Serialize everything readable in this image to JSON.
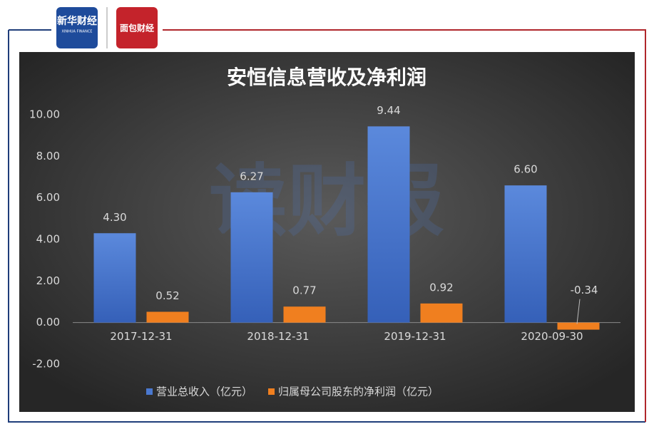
{
  "logos": {
    "xinhua": "新华财经",
    "xinhua_en": "XINHUA FINANCE",
    "mianbao": "面包财经"
  },
  "watermark": "读财报",
  "chart_data": {
    "type": "bar",
    "title": "安恒信息营收及净利润",
    "categories": [
      "2017-12-31",
      "2018-12-31",
      "2019-12-31",
      "2020-09-30"
    ],
    "series": [
      {
        "name": "营业总收入（亿元）",
        "color": "#4a78cf",
        "values": [
          4.3,
          6.27,
          9.44,
          6.6
        ],
        "value_labels": [
          "4.30",
          "6.27",
          "9.44",
          "6.60"
        ]
      },
      {
        "name": "归属母公司股东的净利润（亿元）",
        "color": "#f07f1f",
        "values": [
          0.52,
          0.77,
          0.92,
          -0.34
        ],
        "value_labels": [
          "0.52",
          "0.77",
          "0.92",
          "-0.34"
        ]
      }
    ],
    "ylim": [
      -2,
      10
    ],
    "yticks": [
      {
        "value": -2,
        "label": "-2.00"
      },
      {
        "value": 0,
        "label": "0.00"
      },
      {
        "value": 2,
        "label": "2.00"
      },
      {
        "value": 4,
        "label": "4.00"
      },
      {
        "value": 6,
        "label": "6.00"
      },
      {
        "value": 8,
        "label": "8.00"
      },
      {
        "value": 10,
        "label": "10.00"
      }
    ],
    "grid": false,
    "legend": "bottom"
  }
}
